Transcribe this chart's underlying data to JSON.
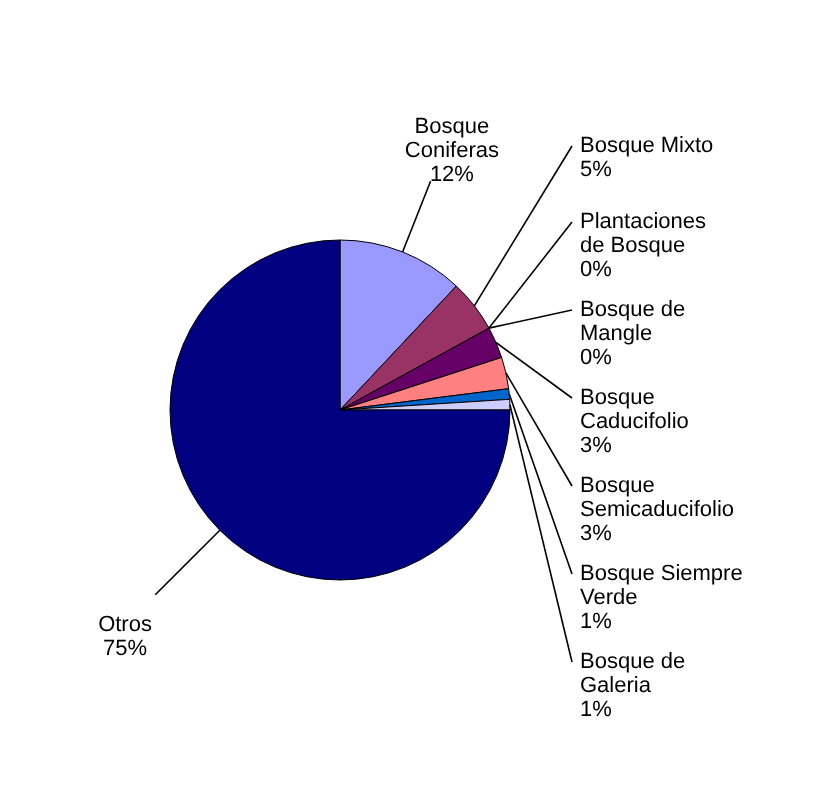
{
  "chart_data": {
    "type": "pie",
    "categories": [
      "Bosque Coniferas",
      "Bosque Mixto",
      "Plantaciones de Bosque",
      "Bosque de Mangle",
      "Bosque Caducifolio",
      "Bosque Semicaducifolio",
      "Bosque Siempre Verde",
      "Bosque de Galeria",
      "Otros"
    ],
    "values": [
      12,
      5,
      0,
      0,
      3,
      3,
      1,
      1,
      75
    ],
    "value_labels": [
      "12%",
      "5%",
      "0%",
      "0%",
      "3%",
      "3%",
      "1%",
      "1%",
      "75%"
    ],
    "colors": [
      "#9999ff",
      "#993366",
      "#ffffcc",
      "#ccffff",
      "#660066",
      "#ff8080",
      "#0066cc",
      "#ccccff",
      "#000080"
    ]
  }
}
